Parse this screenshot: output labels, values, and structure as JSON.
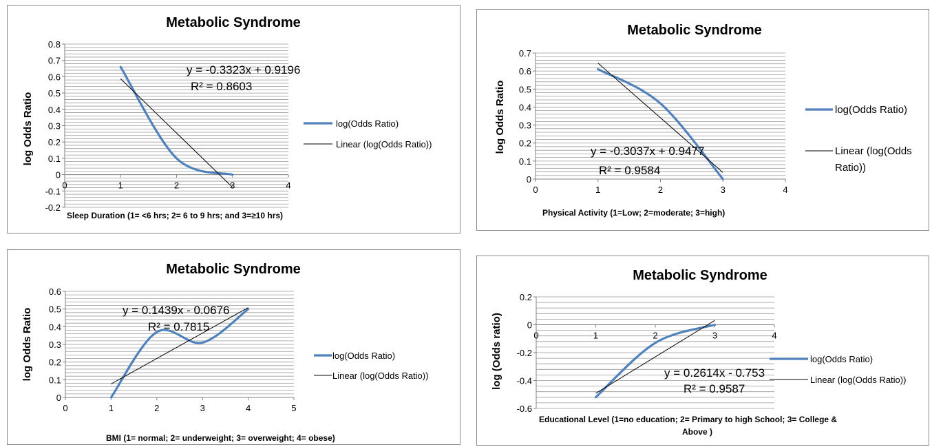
{
  "chart_data": [
    {
      "type": "line",
      "title": "Metabolic Syndrome",
      "xlabel": "Sleep Duration  (1= <6 hrs; 2= 6 to 9 hrs; and 3=≥10 hrs)",
      "ylabel": "log  Odds Ratio",
      "xlim": [
        0,
        4
      ],
      "ylim": [
        -0.2,
        0.8
      ],
      "xticks": [
        "0",
        "1",
        "2",
        "3",
        "4"
      ],
      "yticks": [
        "-0.2",
        "-0.1",
        "0",
        "0.1",
        "0.2",
        "0.3",
        "0.4",
        "0.5",
        "0.6",
        "0.7",
        "0.8"
      ],
      "grid": true,
      "series": [
        {
          "name": "log(Odds Ratio)",
          "x": [
            1,
            2,
            3
          ],
          "values": [
            0.66,
            0.1,
            0.0
          ],
          "color": "#4f81bd"
        },
        {
          "name": "Linear (log(Odds Ratio))",
          "x": [
            1,
            3
          ],
          "values": [
            0.5873,
            -0.0773
          ],
          "color": "#000000"
        }
      ],
      "equation": "y = -0.3323x + 0.9196",
      "r2": "R² = 0.8603",
      "legend": "right"
    },
    {
      "type": "line",
      "title": "Metabolic Syndrome",
      "xlabel": "Physical Activity (1=Low; 2=moderate;  3=high)",
      "ylabel": "log Odds Ratio",
      "xlim": [
        0,
        4
      ],
      "ylim": [
        0,
        0.7
      ],
      "xticks": [
        "0",
        "1",
        "2",
        "3",
        "4"
      ],
      "yticks": [
        "0",
        "0.1",
        "0.2",
        "0.3",
        "0.4",
        "0.5",
        "0.6",
        "0.7"
      ],
      "grid": true,
      "series": [
        {
          "name": "log(Odds Ratio)",
          "x": [
            1,
            2,
            3
          ],
          "values": [
            0.61,
            0.42,
            0.0
          ],
          "color": "#4f81bd"
        },
        {
          "name": "Linear (log(Odds Ratio))",
          "x": [
            1,
            3
          ],
          "values": [
            0.644,
            0.0366
          ],
          "color": "#000000"
        }
      ],
      "equation": "y = -0.3037x + 0.9477",
      "r2": "R² = 0.9584",
      "legend": "right"
    },
    {
      "type": "line",
      "title": "Metabolic Syndrome",
      "xlabel": "BMI  (1= normal; 2= underweight; 3= overweight; 4= obese)",
      "ylabel": "log Odds Ratio",
      "xlim": [
        0,
        5
      ],
      "ylim": [
        0,
        0.6
      ],
      "xticks": [
        "0",
        "1",
        "2",
        "3",
        "4",
        "5"
      ],
      "yticks": [
        "0",
        "0.1",
        "0.2",
        "0.3",
        "0.4",
        "0.5",
        "0.6"
      ],
      "grid": true,
      "series": [
        {
          "name": "log(Odds Ratio)",
          "x": [
            1,
            2,
            3,
            4
          ],
          "values": [
            0.0,
            0.37,
            0.31,
            0.5
          ],
          "color": "#4f81bd"
        },
        {
          "name": "Linear (log(Odds Ratio))",
          "x": [
            1,
            4
          ],
          "values": [
            0.0763,
            0.508
          ],
          "color": "#000000"
        }
      ],
      "equation": "y = 0.1439x - 0.0676",
      "r2": "R² = 0.7815",
      "legend": "right"
    },
    {
      "type": "line",
      "title": "Metabolic Syndrome",
      "xlabel": "Educational Level (1=no education; 2= Primary to high School; 3= College & Above )",
      "ylabel": "log (Odds ratio)",
      "xlim": [
        0,
        4
      ],
      "ylim": [
        -0.6,
        0.2
      ],
      "xticks": [
        "0",
        "1",
        "2",
        "3",
        "4"
      ],
      "yticks": [
        "-0.6",
        "-0.4",
        "-0.2",
        "0",
        "0.2"
      ],
      "grid": true,
      "series": [
        {
          "name": "log(Odds Ratio)",
          "x": [
            1,
            2,
            3
          ],
          "values": [
            -0.52,
            -0.13,
            0.0
          ],
          "color": "#4f81bd"
        },
        {
          "name": "Linear (log(Odds Ratio))",
          "x": [
            1,
            3
          ],
          "values": [
            -0.4916,
            0.0312
          ],
          "color": "#000000"
        }
      ],
      "equation": "y = 0.2614x - 0.753",
      "r2": "R² = 0.9587",
      "legend": "right"
    }
  ]
}
